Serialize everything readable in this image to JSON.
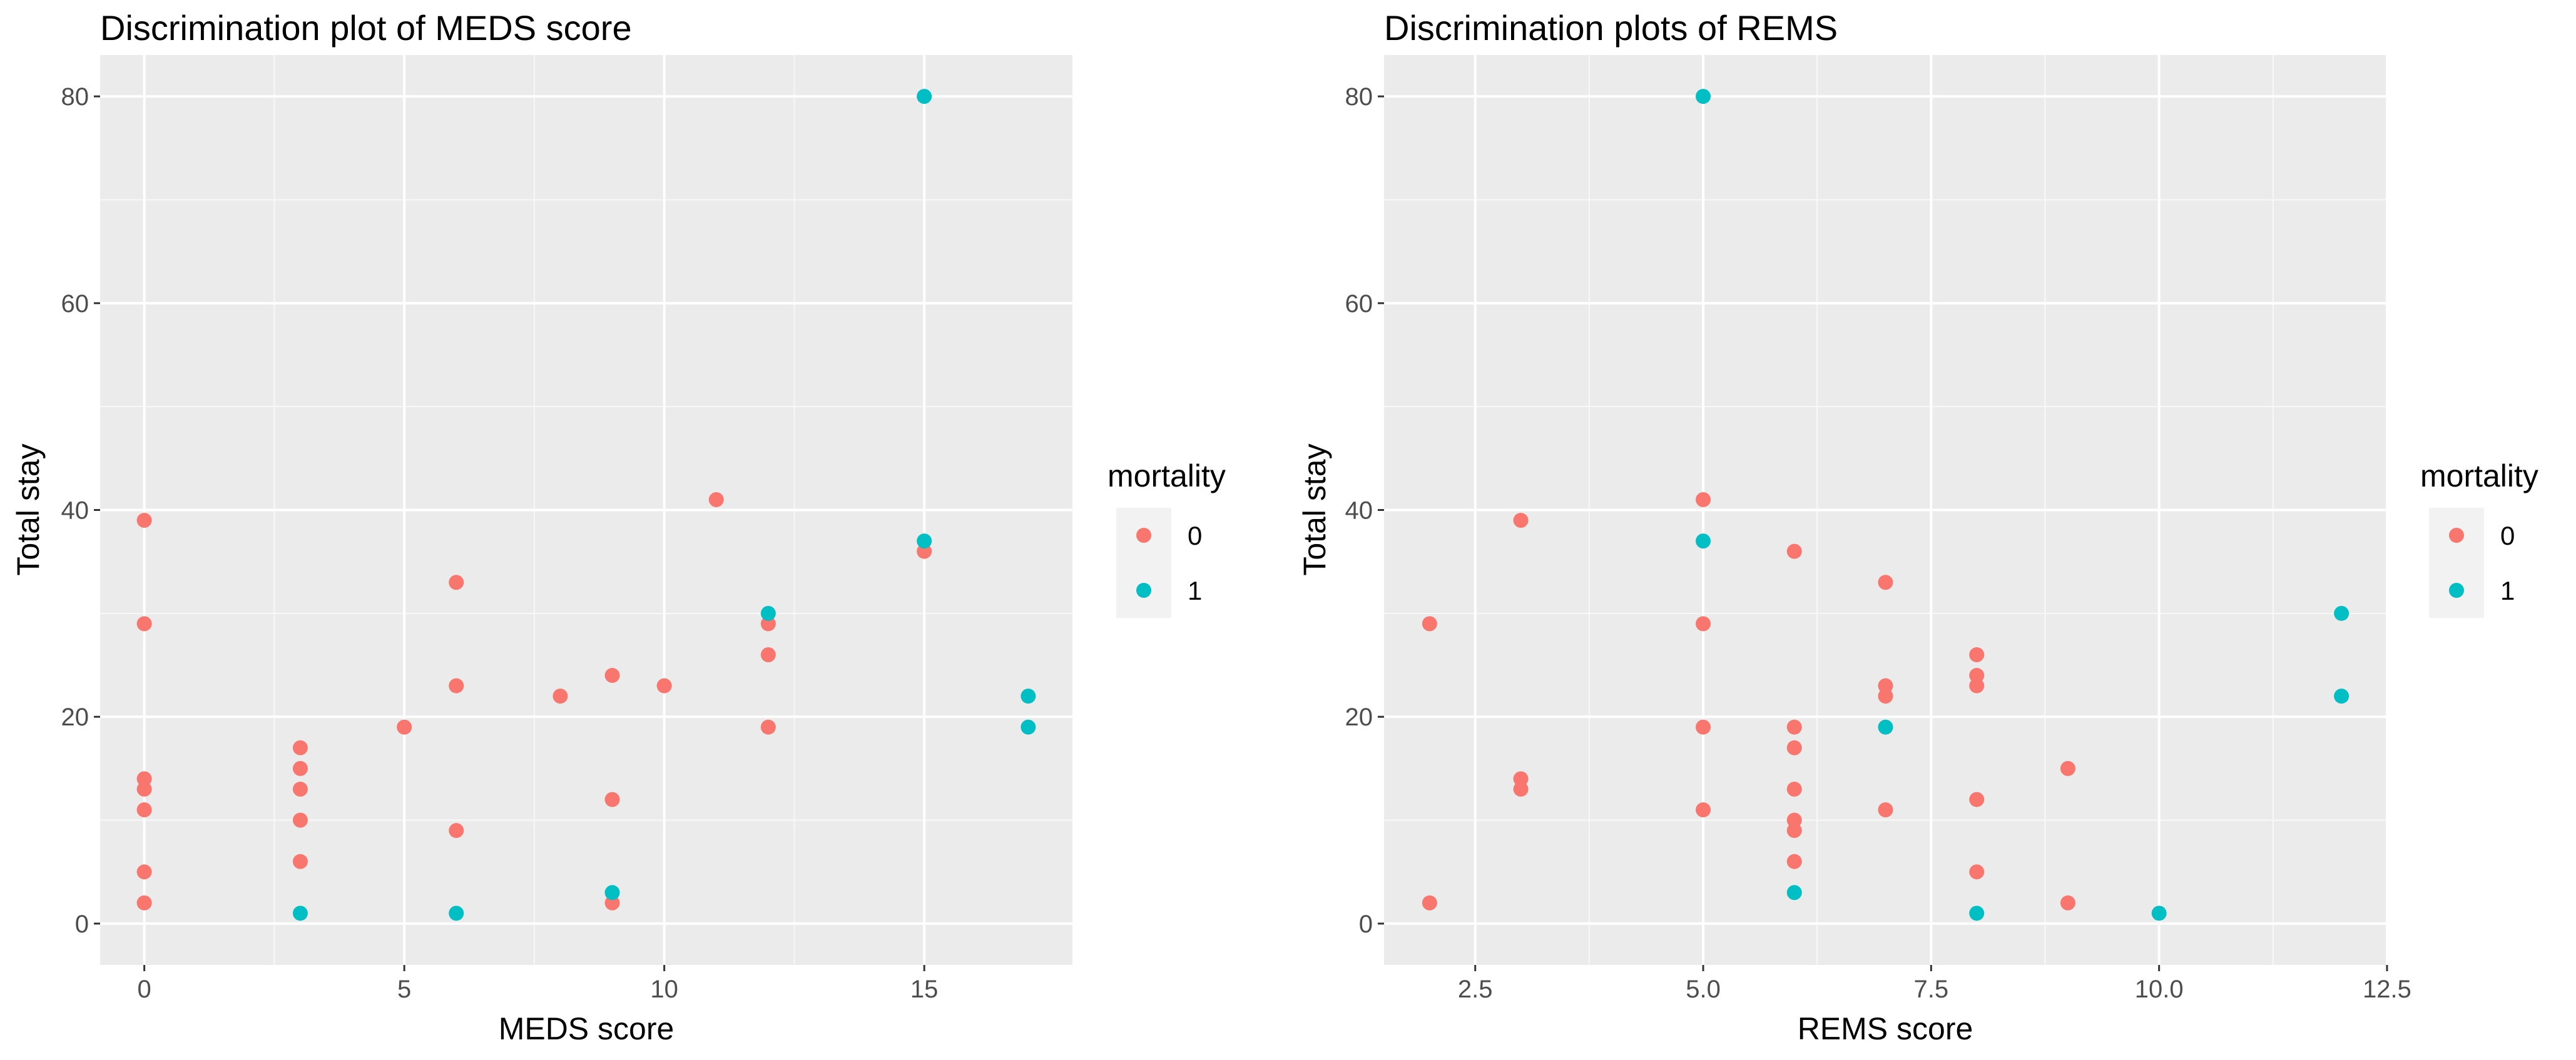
{
  "chart_data": [
    {
      "type": "scatter",
      "title": "Discrimination plot of MEDS score",
      "xlabel": "MEDS score",
      "ylabel": "Total stay",
      "xlim": [
        -0.85,
        17.85
      ],
      "ylim": [
        -4,
        84
      ],
      "xticks": [
        0,
        5,
        10,
        15
      ],
      "xtick_labels": [
        "0",
        "5",
        "10",
        "15"
      ],
      "yticks": [
        0,
        20,
        40,
        60,
        80
      ],
      "ytick_labels": [
        "0",
        "20",
        "40",
        "60",
        "80"
      ],
      "grid": true,
      "legend": {
        "title": "mortality",
        "position": "right",
        "entries": [
          {
            "label": "0",
            "color": "#F8766D"
          },
          {
            "label": "1",
            "color": "#00BFC4"
          }
        ]
      },
      "series": [
        {
          "name": "0",
          "color": "#F8766D",
          "x": [
            0,
            0,
            0,
            0,
            0,
            0,
            0,
            3,
            3,
            3,
            3,
            3,
            5,
            6,
            6,
            6,
            8,
            9,
            9,
            9,
            10,
            11,
            12,
            12,
            12,
            15
          ],
          "y": [
            39,
            29,
            14,
            13,
            11,
            5,
            2,
            17,
            15,
            13,
            10,
            6,
            19,
            33,
            23,
            9,
            22,
            24,
            12,
            2,
            23,
            41,
            29,
            26,
            19,
            36
          ]
        },
        {
          "name": "1",
          "color": "#00BFC4",
          "x": [
            3,
            6,
            9,
            12,
            15,
            15,
            17,
            17
          ],
          "y": [
            1,
            1,
            3,
            30,
            80,
            37,
            22,
            19
          ]
        }
      ]
    },
    {
      "type": "scatter",
      "title": "Discrimination plots of REMS",
      "xlabel": "REMS score",
      "ylabel": "Total stay",
      "xlim": [
        1.5,
        12.5
      ],
      "ylim": [
        -4,
        84
      ],
      "xticks": [
        2.5,
        5.0,
        7.5,
        10.0,
        12.5
      ],
      "xtick_labels": [
        "2.5",
        "5.0",
        "7.5",
        "10.0",
        "12.5"
      ],
      "yticks": [
        0,
        20,
        40,
        60,
        80
      ],
      "ytick_labels": [
        "0",
        "20",
        "40",
        "60",
        "80"
      ],
      "grid": true,
      "legend": {
        "title": "mortality",
        "position": "right",
        "entries": [
          {
            "label": "0",
            "color": "#F8766D"
          },
          {
            "label": "1",
            "color": "#00BFC4"
          }
        ]
      },
      "series": [
        {
          "name": "0",
          "color": "#F8766D",
          "x": [
            2,
            2,
            3,
            3,
            3,
            5,
            5,
            5,
            5,
            6,
            6,
            6,
            6,
            6,
            6,
            6,
            7,
            7,
            7,
            7,
            8,
            8,
            8,
            8,
            8,
            9,
            9
          ],
          "y": [
            29,
            2,
            39,
            14,
            13,
            41,
            29,
            19,
            11,
            36,
            19,
            17,
            13,
            10,
            9,
            6,
            33,
            23,
            22,
            11,
            26,
            24,
            23,
            12,
            5,
            15,
            2
          ]
        },
        {
          "name": "1",
          "color": "#00BFC4",
          "x": [
            5,
            5,
            6,
            7,
            8,
            10,
            12,
            12
          ],
          "y": [
            80,
            37,
            3,
            19,
            1,
            1,
            30,
            22
          ]
        }
      ]
    }
  ]
}
